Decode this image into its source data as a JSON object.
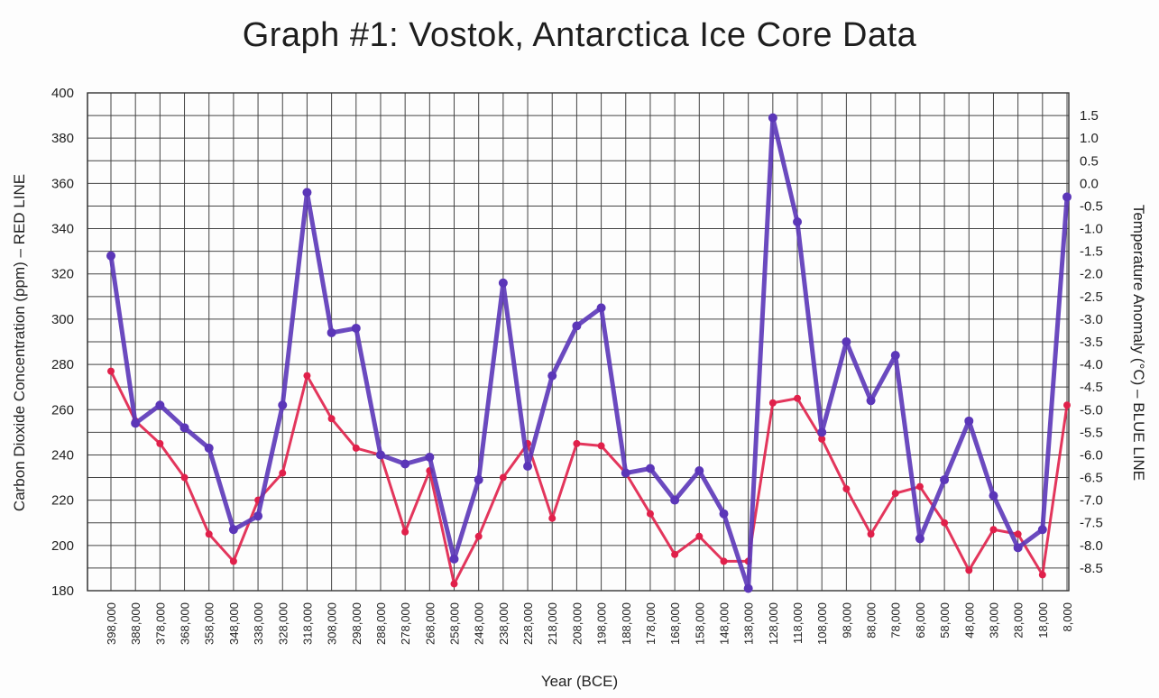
{
  "chart_data": {
    "type": "line",
    "title": "Graph #1: Vostok, Antarctica Ice Core Data",
    "xlabel": "Year (BCE)",
    "ylabel": "Carbon Dioxide Concentration (ppm) – RED LINE",
    "ylabel_right": "Temperature Anomaly (°C) – BLUE LINE",
    "ylim": [
      180,
      400
    ],
    "ylim_right": [
      -9.0,
      2.0
    ],
    "grid": true,
    "y_ticks": [
      "400",
      "380",
      "360",
      "340",
      "320",
      "300",
      "280",
      "260",
      "240",
      "220",
      "200",
      "180"
    ],
    "y_ticks_right": [
      "1.5",
      "1.0",
      "0.5",
      "0.0",
      "-0.5",
      "-1.0",
      "-1.5",
      "-2.0",
      "-2.5",
      "-3.0",
      "-3.5",
      "-4.0",
      "-4.5",
      "-5.0",
      "-5.5",
      "-6.0",
      "-6.5",
      "-7.0",
      "-7.5",
      "-8.0",
      "-8.5"
    ],
    "categories": [
      "398,000",
      "388,000",
      "378,000",
      "368,000",
      "358,000",
      "348,000",
      "338,000",
      "328,000",
      "318,000",
      "308,000",
      "298,000",
      "288,000",
      "278,000",
      "268,000",
      "258,000",
      "248,000",
      "238,000",
      "228,000",
      "218,000",
      "208,000",
      "198,000",
      "188,000",
      "178,000",
      "168,000",
      "158,000",
      "148,000",
      "138,000",
      "128,000",
      "118,000",
      "108,000",
      "98,000",
      "88,000",
      "78,000",
      "68,000",
      "58,000",
      "48,000",
      "38,000",
      "28,000",
      "18,000",
      "8,000"
    ],
    "series": [
      {
        "name": "Carbon Dioxide (ppm) - red line",
        "axis": "left",
        "color": "#e0204a",
        "values": [
          277,
          255,
          245,
          230,
          205,
          193,
          220,
          232,
          275,
          256,
          243,
          240,
          206,
          233,
          183,
          204,
          230,
          245,
          212,
          245,
          244,
          232,
          214,
          196,
          204,
          193,
          193,
          263,
          265,
          247,
          225,
          205,
          223,
          226,
          210,
          189,
          207,
          205,
          187,
          262
        ]
      },
      {
        "name": "Temperature Anomaly (°C) - blue line",
        "axis": "right",
        "color": "#5b36b8",
        "values": [
          -1.6,
          -5.3,
          -4.9,
          -5.4,
          -5.85,
          -7.65,
          -7.35,
          -4.9,
          -0.2,
          -3.3,
          -3.2,
          -6.0,
          -6.2,
          -6.05,
          -8.3,
          -6.55,
          -2.2,
          -6.25,
          -4.25,
          -3.15,
          -2.75,
          -6.4,
          -6.3,
          -7.0,
          -6.35,
          -7.3,
          -8.95,
          1.45,
          -0.85,
          -5.5,
          -3.5,
          -4.8,
          -3.8,
          -7.85,
          -6.55,
          -5.25,
          -6.9,
          -8.05,
          -7.65,
          -0.3
        ]
      }
    ]
  }
}
